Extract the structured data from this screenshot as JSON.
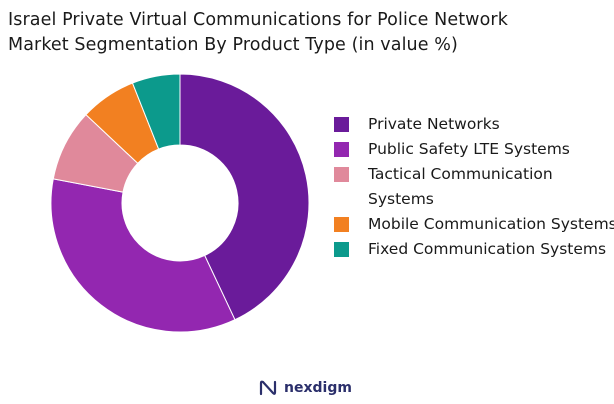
{
  "title_lines": [
    "Israel Private Virtual Communications for Police Network",
    "Market Segmentation By Product Type (in value %)"
  ],
  "brand": "nexdigm",
  "chart_data": {
    "type": "pie",
    "variant": "donut",
    "title": "Israel Private Virtual Communications for Police Network Market Segmentation By Product Type (in value %)",
    "legend_position": "right",
    "series": [
      {
        "name": "Private Networks",
        "value": 43,
        "color": "#6a1b9a",
        "legend_label": "Private Networks"
      },
      {
        "name": "Public Safety LTE Systems",
        "value": 35,
        "color": "#9327b0",
        "legend_label": "Public Safety LTE Systems"
      },
      {
        "name": "Tactical Communication Systems",
        "value": 9,
        "color": "#e0899b",
        "legend_label": "Tactical Communication Systems"
      },
      {
        "name": "Mobile Communication Systems",
        "value": 7,
        "color": "#f28021",
        "legend_label": "Mobile Communication Systems"
      },
      {
        "name": "Fixed Communication Systems",
        "value": 6,
        "color": "#0c9a8c",
        "legend_label": "Fixed Communication Systems"
      }
    ]
  }
}
